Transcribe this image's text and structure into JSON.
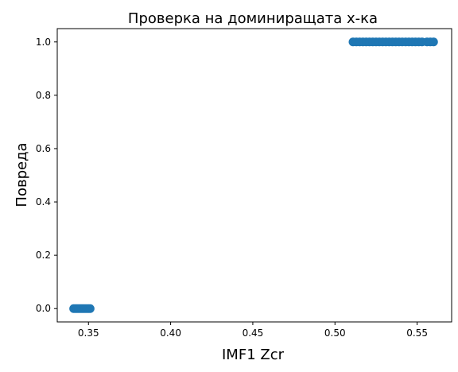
{
  "chart_data": {
    "type": "scatter",
    "title": "Проверка на доминиращата х-ка",
    "xlabel": "IMF1 Zcr",
    "ylabel": "Повреда",
    "xlim": [
      0.331,
      0.571
    ],
    "ylim": [
      -0.05,
      1.05
    ],
    "xticks": [
      "0.35",
      "0.40",
      "0.45",
      "0.50",
      "0.55"
    ],
    "xtick_values": [
      0.35,
      0.4,
      0.45,
      0.5,
      0.55
    ],
    "yticks": [
      "0.0",
      "0.2",
      "0.4",
      "0.6",
      "0.8",
      "1.0"
    ],
    "ytick_values": [
      0.0,
      0.2,
      0.4,
      0.6,
      0.8,
      1.0
    ],
    "grid": false,
    "marker_color": "#1f77b4",
    "series": [
      {
        "x": [
          0.341,
          0.342,
          0.343,
          0.344,
          0.345,
          0.346,
          0.347,
          0.348,
          0.349,
          0.35,
          0.351,
          0.511,
          0.513,
          0.515,
          0.517,
          0.519,
          0.521,
          0.523,
          0.525,
          0.527,
          0.529,
          0.531,
          0.533,
          0.535,
          0.537,
          0.539,
          0.541,
          0.543,
          0.545,
          0.547,
          0.549,
          0.551,
          0.553,
          0.556,
          0.558,
          0.56
        ],
        "y": [
          0,
          0,
          0,
          0,
          0,
          0,
          0,
          0,
          0,
          0,
          0,
          1,
          1,
          1,
          1,
          1,
          1,
          1,
          1,
          1,
          1,
          1,
          1,
          1,
          1,
          1,
          1,
          1,
          1,
          1,
          1,
          1,
          1,
          1,
          1,
          1
        ]
      }
    ]
  }
}
